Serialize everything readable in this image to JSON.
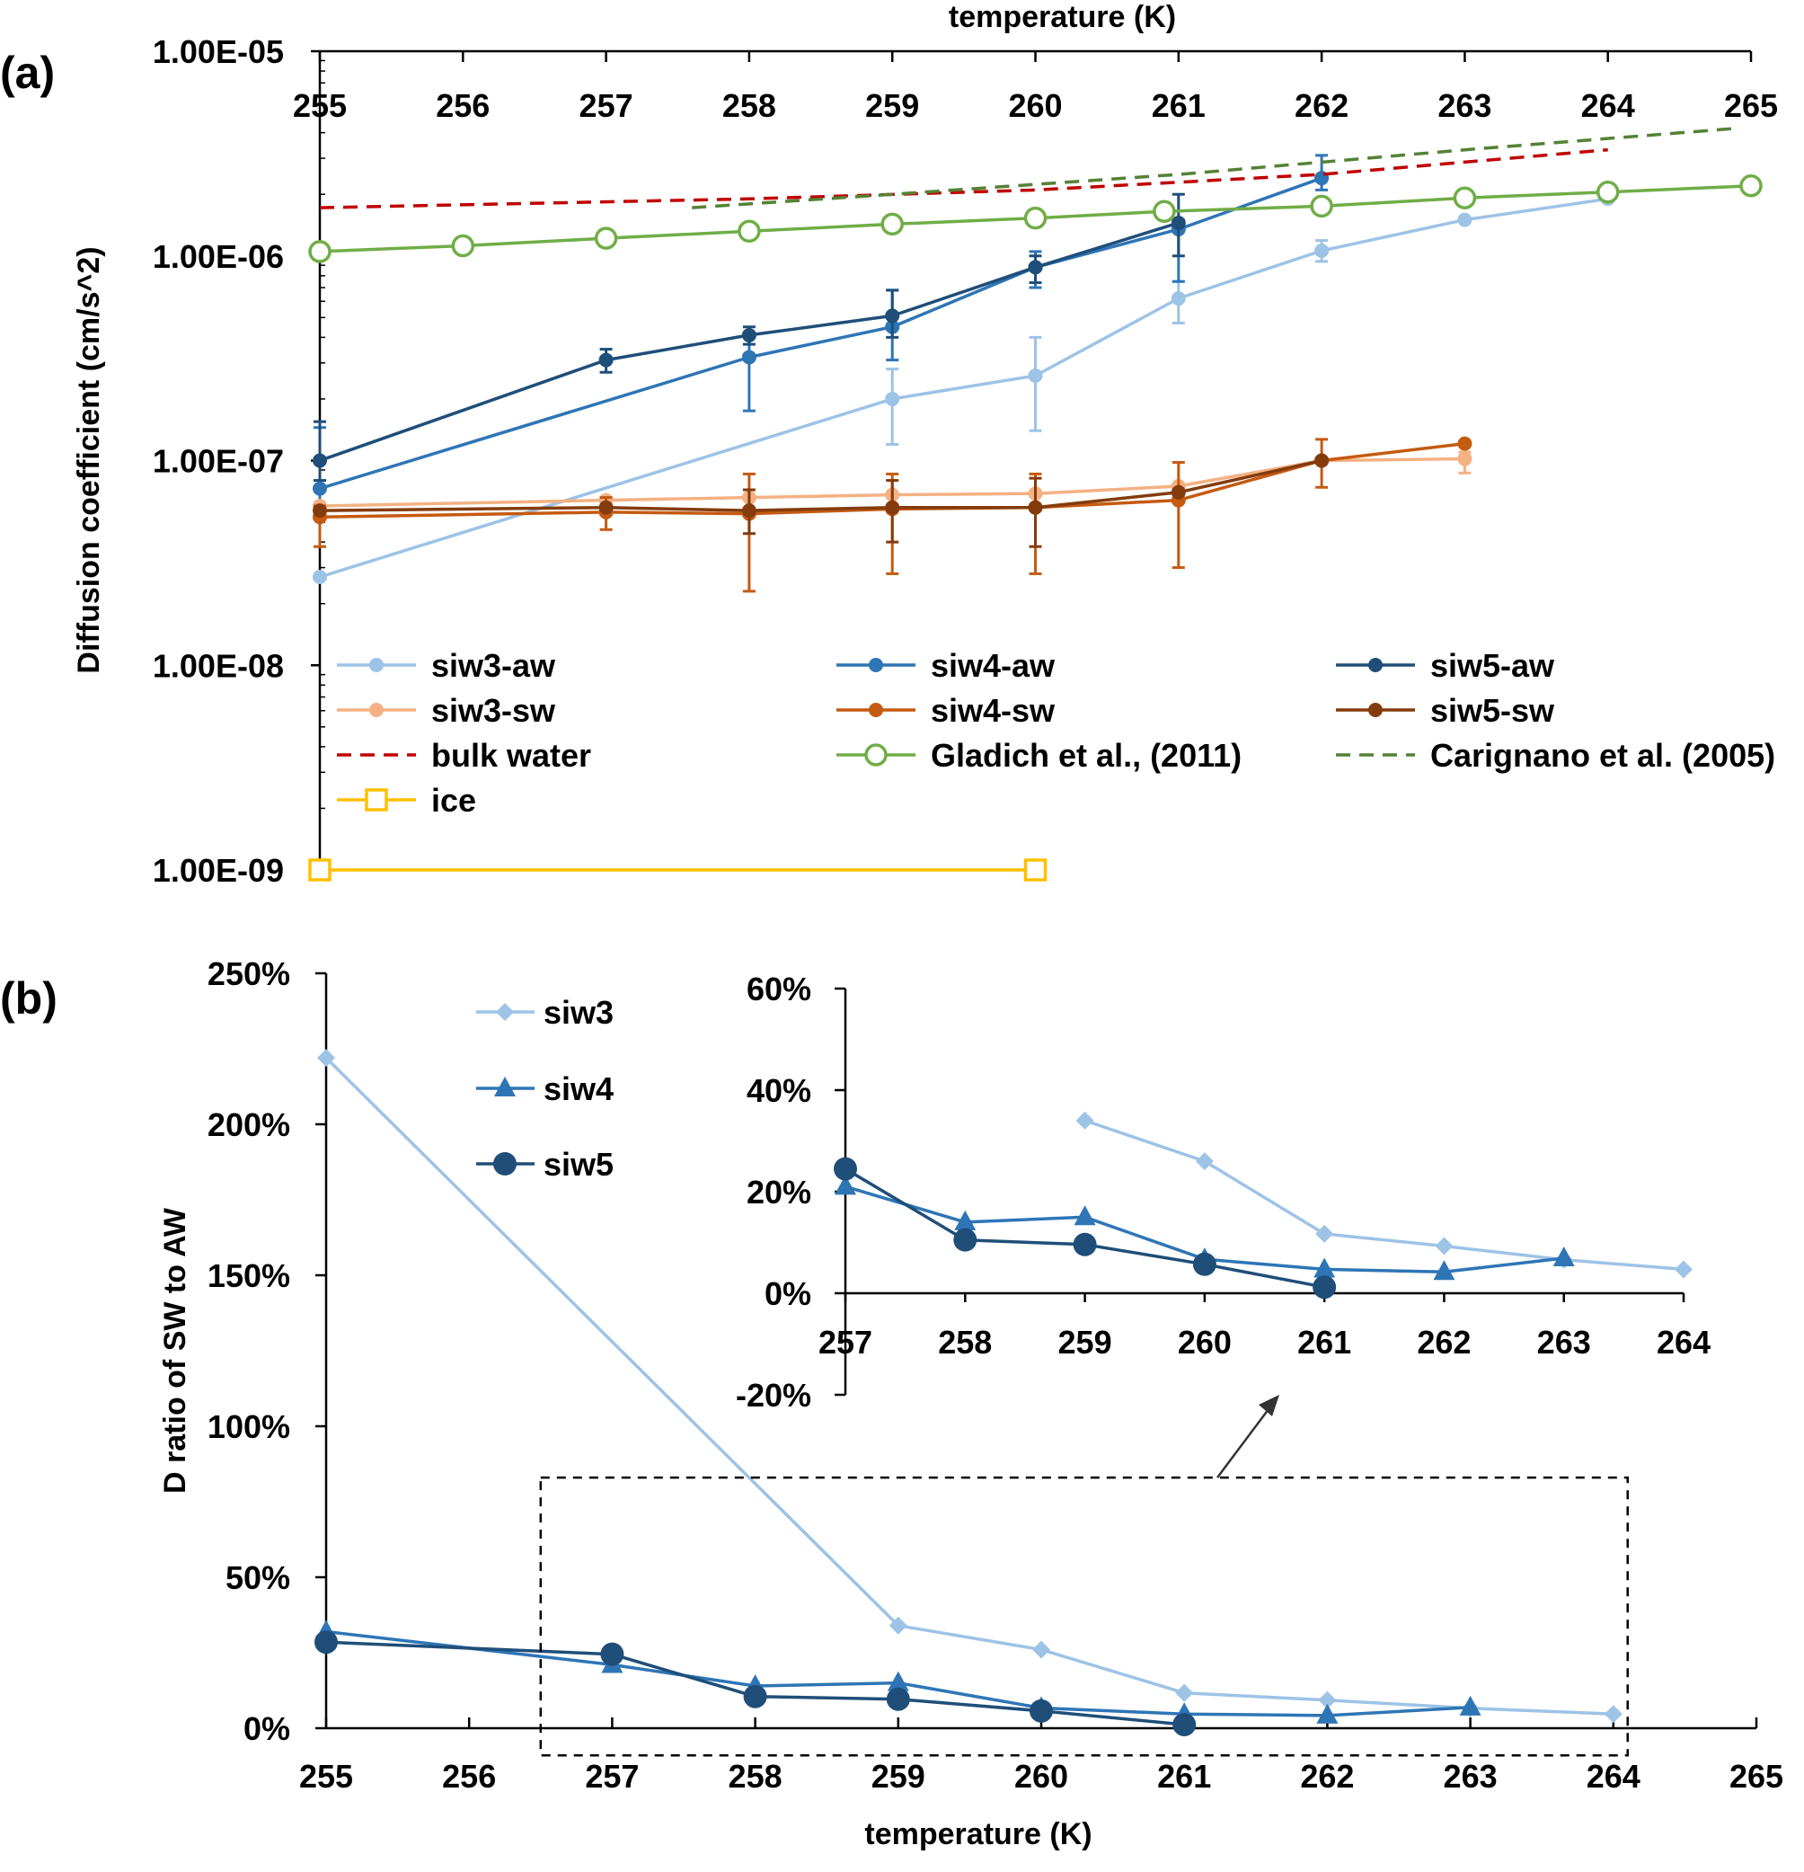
{
  "figure": {
    "panel_a_label": "(a)",
    "panel_b_label": "(b)"
  },
  "chart_data": [
    {
      "type": "line",
      "panel": "(a)",
      "title": "",
      "xlabel": "temperature (K)",
      "ylabel": "Diffusion coefficient (cm/s^2)",
      "xlim": [
        255,
        265
      ],
      "ylim_log10": [
        -9,
        -5
      ],
      "yscale": "log",
      "x_ticks": [
        "255",
        "256",
        "257",
        "258",
        "259",
        "260",
        "261",
        "262",
        "263",
        "264",
        "265"
      ],
      "y_ticks": [
        {
          "value": 1e-05,
          "label": "1.00E-05"
        },
        {
          "value": 1e-06,
          "label": "1.00E-06"
        },
        {
          "value": 1e-07,
          "label": "1.00E-07"
        },
        {
          "value": 1e-08,
          "label": "1.00E-08"
        },
        {
          "value": 1e-09,
          "label": "1.00E-09"
        }
      ],
      "legend_position": "lower-middle",
      "series": [
        {
          "key": "siw3-aw",
          "name": "siw3-aw",
          "color": "#9dc3e6",
          "dash": "solid",
          "marker": "dot",
          "points": [
            {
              "x": 255,
              "y": 2.7e-08
            },
            {
              "x": 259,
              "y": 2e-07
            },
            {
              "x": 260,
              "y": 2.6e-07
            },
            {
              "x": 261,
              "y": 6.2e-07
            },
            {
              "x": 262,
              "y": 1.06e-06
            },
            {
              "x": 263,
              "y": 1.5e-06
            },
            {
              "x": 264,
              "y": 1.9e-06
            }
          ],
          "errors": [
            {
              "x": 259,
              "lo": 1.2e-07,
              "hi": 2.8e-07
            },
            {
              "x": 260,
              "lo": 1.4e-07,
              "hi": 4e-07
            },
            {
              "x": 261,
              "lo": 4.7e-07,
              "hi": 7.5e-07
            },
            {
              "x": 262,
              "lo": 9.4e-07,
              "hi": 1.19e-06
            }
          ]
        },
        {
          "key": "siw4-aw",
          "name": "siw4-aw",
          "color": "#2e75b6",
          "dash": "solid",
          "marker": "dot",
          "points": [
            {
              "x": 255,
              "y": 7.3e-08
            },
            {
              "x": 258,
              "y": 3.2e-07
            },
            {
              "x": 259,
              "y": 4.5e-07
            },
            {
              "x": 260,
              "y": 8.8e-07
            },
            {
              "x": 261,
              "y": 1.35e-06
            },
            {
              "x": 262,
              "y": 2.4e-06
            }
          ],
          "errors": [
            {
              "x": 255,
              "lo": 6e-08,
              "hi": 1.45e-07
            },
            {
              "x": 258,
              "lo": 1.75e-07,
              "hi": 4.2e-07
            },
            {
              "x": 259,
              "lo": 3.1e-07,
              "hi": 6.8e-07
            },
            {
              "x": 260,
              "lo": 7e-07,
              "hi": 1.05e-06
            },
            {
              "x": 261,
              "lo": 7.5e-07,
              "hi": 1.5e-06
            },
            {
              "x": 262,
              "lo": 2.1e-06,
              "hi": 3.1e-06
            }
          ]
        },
        {
          "key": "siw5-aw",
          "name": "siw5-aw",
          "color": "#1f4e79",
          "dash": "solid",
          "marker": "dot",
          "points": [
            {
              "x": 255,
              "y": 1e-07
            },
            {
              "x": 257,
              "y": 3.1e-07
            },
            {
              "x": 258,
              "y": 4.1e-07
            },
            {
              "x": 259,
              "y": 5.1e-07
            },
            {
              "x": 260,
              "y": 8.8e-07
            },
            {
              "x": 261,
              "y": 1.45e-06
            }
          ],
          "errors": [
            {
              "x": 255,
              "lo": 8e-08,
              "hi": 1.55e-07
            },
            {
              "x": 257,
              "lo": 2.7e-07,
              "hi": 3.5e-07
            },
            {
              "x": 258,
              "lo": 3.7e-07,
              "hi": 4.5e-07
            },
            {
              "x": 259,
              "lo": 4e-07,
              "hi": 6.8e-07
            },
            {
              "x": 260,
              "lo": 7.4e-07,
              "hi": 1e-06
            },
            {
              "x": 261,
              "lo": 1e-06,
              "hi": 2e-06
            }
          ]
        },
        {
          "key": "siw3-sw",
          "name": "siw3-sw",
          "color": "#f4b183",
          "dash": "solid",
          "marker": "dot",
          "points": [
            {
              "x": 255,
              "y": 6e-08
            },
            {
              "x": 257,
              "y": 6.4e-08
            },
            {
              "x": 258,
              "y": 6.6e-08
            },
            {
              "x": 259,
              "y": 6.8e-08
            },
            {
              "x": 260,
              "y": 6.9e-08
            },
            {
              "x": 261,
              "y": 7.5e-08
            },
            {
              "x": 262,
              "y": 1e-07
            },
            {
              "x": 263,
              "y": 1.02e-07
            }
          ],
          "errors": [
            {
              "x": 263,
              "lo": 8.7e-08,
              "hi": 1.1e-07
            }
          ]
        },
        {
          "key": "siw4-sw",
          "name": "siw4-sw",
          "color": "#c55a11",
          "dash": "solid",
          "marker": "dot",
          "points": [
            {
              "x": 255,
              "y": 5.3e-08
            },
            {
              "x": 257,
              "y": 5.6e-08
            },
            {
              "x": 258,
              "y": 5.5e-08
            },
            {
              "x": 259,
              "y": 5.8e-08
            },
            {
              "x": 260,
              "y": 5.9e-08
            },
            {
              "x": 261,
              "y": 6.4e-08
            },
            {
              "x": 262,
              "y": 1e-07
            },
            {
              "x": 263,
              "y": 1.21e-07
            }
          ],
          "errors": [
            {
              "x": 255,
              "lo": 3.8e-08,
              "hi": 6e-08
            },
            {
              "x": 257,
              "lo": 4.6e-08,
              "hi": 6.6e-08
            },
            {
              "x": 258,
              "lo": 2.3e-08,
              "hi": 8.6e-08
            },
            {
              "x": 259,
              "lo": 2.8e-08,
              "hi": 8.6e-08
            },
            {
              "x": 260,
              "lo": 2.8e-08,
              "hi": 8.6e-08
            },
            {
              "x": 261,
              "lo": 3e-08,
              "hi": 9.8e-08
            },
            {
              "x": 262,
              "lo": 7.4e-08,
              "hi": 1.27e-07
            }
          ]
        },
        {
          "key": "siw5-sw",
          "name": "siw5-sw",
          "color": "#843c0c",
          "dash": "solid",
          "marker": "dot",
          "points": [
            {
              "x": 255,
              "y": 5.7e-08
            },
            {
              "x": 257,
              "y": 5.9e-08
            },
            {
              "x": 258,
              "y": 5.7e-08
            },
            {
              "x": 259,
              "y": 5.9e-08
            },
            {
              "x": 260,
              "y": 5.9e-08
            },
            {
              "x": 261,
              "y": 7e-08
            },
            {
              "x": 262,
              "y": 1e-07
            }
          ],
          "errors": [
            {
              "x": 258,
              "lo": 4.4e-08,
              "hi": 7.2e-08
            },
            {
              "x": 259,
              "lo": 4e-08,
              "hi": 8e-08
            },
            {
              "x": 260,
              "lo": 3.8e-08,
              "hi": 8.2e-08
            }
          ]
        },
        {
          "key": "bulk",
          "name": "bulk water",
          "color": "#c00000",
          "dash": "dash",
          "marker": "none",
          "points": [
            {
              "x": 255,
              "y": 1.72e-06
            },
            {
              "x": 258,
              "y": 1.9e-06
            },
            {
              "x": 260,
              "y": 2.1e-06
            },
            {
              "x": 262,
              "y": 2.5e-06
            },
            {
              "x": 264,
              "y": 3.3e-06
            }
          ]
        },
        {
          "key": "gladich",
          "name": "Gladich et al., (2011)",
          "color": "#70ad47",
          "dash": "solid",
          "marker": "open-circle",
          "points": [
            {
              "x": 255,
              "y": 1.05e-06
            },
            {
              "x": 256,
              "y": 1.12e-06
            },
            {
              "x": 257,
              "y": 1.22e-06
            },
            {
              "x": 258,
              "y": 1.32e-06
            },
            {
              "x": 259,
              "y": 1.43e-06
            },
            {
              "x": 260,
              "y": 1.53e-06
            },
            {
              "x": 260.9,
              "y": 1.65e-06
            },
            {
              "x": 262,
              "y": 1.75e-06
            },
            {
              "x": 263,
              "y": 1.92e-06
            },
            {
              "x": 264,
              "y": 2.05e-06
            },
            {
              "x": 265,
              "y": 2.2e-06
            }
          ]
        },
        {
          "key": "carignano",
          "name": "Carignano et al. (2005)",
          "color": "#548235",
          "dash": "dash",
          "marker": "none",
          "points": [
            {
              "x": 257.6,
              "y": 1.72e-06
            },
            {
              "x": 259,
              "y": 2e-06
            },
            {
              "x": 261,
              "y": 2.5e-06
            },
            {
              "x": 263,
              "y": 3.3e-06
            },
            {
              "x": 264.9,
              "y": 4.2e-06
            }
          ]
        },
        {
          "key": "ice",
          "name": "ice",
          "color": "#ffc000",
          "dash": "solid",
          "marker": "open-square",
          "points": [
            {
              "x": 255,
              "y": 1e-09
            },
            {
              "x": 260,
              "y": 1e-09
            }
          ]
        }
      ]
    },
    {
      "type": "line",
      "panel": "(b)",
      "title": "",
      "xlabel": "temperature (K)",
      "ylabel": "D ratio of SW to AW",
      "xlim": [
        255,
        265
      ],
      "ylim": [
        0,
        250
      ],
      "x_ticks": [
        "255",
        "256",
        "257",
        "258",
        "259",
        "260",
        "261",
        "262",
        "263",
        "264",
        "265"
      ],
      "y_ticks": [
        "0%",
        "50%",
        "100%",
        "150%",
        "200%",
        "250%"
      ],
      "legend_position": "top-left",
      "highlight_box": {
        "x_range": [
          256.5,
          264.1
        ],
        "y_range_pct": [
          -20,
          83
        ],
        "note": "dashed box zoomed into inset"
      },
      "series": [
        {
          "key": "siw3",
          "name": "siw3",
          "color": "#9dc3e6",
          "marker": "diamond",
          "points": [
            {
              "x": 255,
              "y": 222
            },
            {
              "x": 259,
              "y": 34
            },
            {
              "x": 260,
              "y": 26
            },
            {
              "x": 261,
              "y": 11.7
            },
            {
              "x": 262,
              "y": 9.3
            },
            {
              "x": 263,
              "y": 6.6
            },
            {
              "x": 264,
              "y": 4.7
            }
          ]
        },
        {
          "key": "siw4",
          "name": "siw4",
          "color": "#2e75b6",
          "marker": "triangle",
          "points": [
            {
              "x": 255,
              "y": 32
            },
            {
              "x": 257,
              "y": 21
            },
            {
              "x": 258,
              "y": 14
            },
            {
              "x": 259,
              "y": 15
            },
            {
              "x": 260,
              "y": 6.7
            },
            {
              "x": 261,
              "y": 4.7
            },
            {
              "x": 262,
              "y": 4.2
            },
            {
              "x": 263,
              "y": 6.9
            }
          ]
        },
        {
          "key": "siw5",
          "name": "siw5",
          "color": "#1f4e79",
          "marker": "circle",
          "points": [
            {
              "x": 255,
              "y": 28.5
            },
            {
              "x": 257,
              "y": 24.5
            },
            {
              "x": 258,
              "y": 10.5
            },
            {
              "x": 259,
              "y": 9.6
            },
            {
              "x": 260,
              "y": 5.7
            },
            {
              "x": 261,
              "y": 1.2
            }
          ]
        }
      ],
      "inset": {
        "xlim": [
          257,
          264
        ],
        "ylim": [
          -20,
          60
        ],
        "x_ticks": [
          "257",
          "258",
          "259",
          "260",
          "261",
          "262",
          "263",
          "264"
        ],
        "y_ticks": [
          "-20%",
          "0%",
          "20%",
          "40%",
          "60%"
        ]
      }
    }
  ]
}
